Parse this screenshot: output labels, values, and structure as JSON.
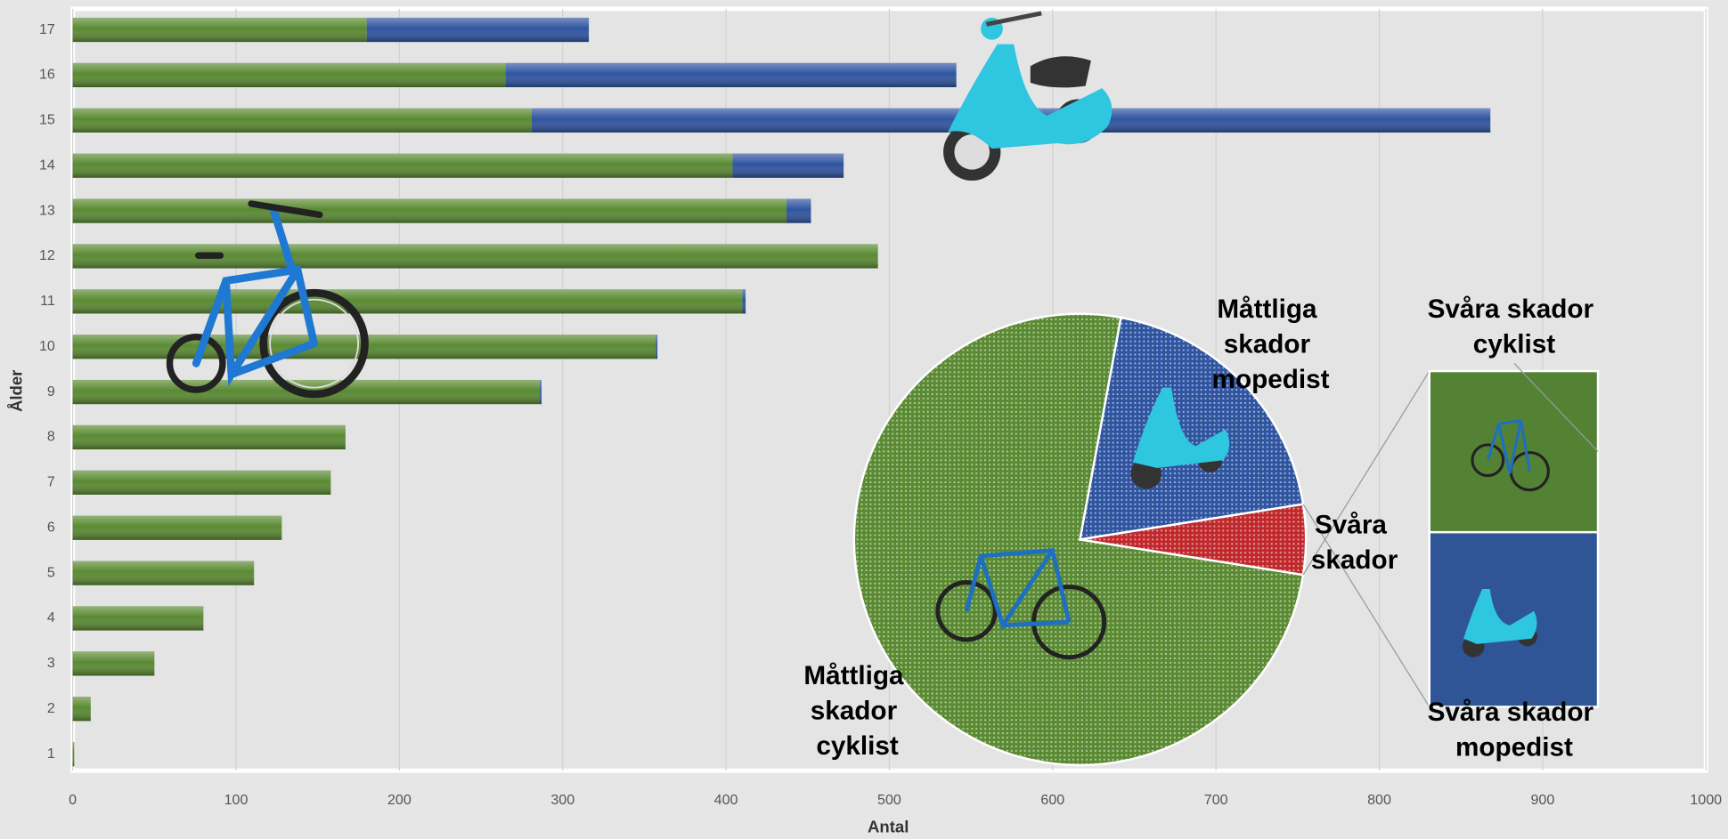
{
  "chart_data": [
    {
      "type": "bar",
      "orientation": "horizontal",
      "stacked": true,
      "categories": [
        "1",
        "2",
        "3",
        "4",
        "5",
        "6",
        "7",
        "8",
        "9",
        "10",
        "11",
        "12",
        "13",
        "14",
        "15",
        "16",
        "17"
      ],
      "series": [
        {
          "color": "#5a8a32",
          "values": [
            1,
            11,
            50,
            80,
            111,
            128,
            158,
            167,
            286,
            357,
            410,
            493,
            437,
            404,
            281,
            265,
            180
          ]
        },
        {
          "color": "#2f54a0",
          "values": [
            0,
            0,
            0,
            0,
            0,
            0,
            0,
            0,
            1,
            1,
            2,
            0,
            15,
            68,
            587,
            276,
            136
          ]
        }
      ],
      "xlabel": "Antal",
      "ylabel": "Ålder",
      "xlim": [
        0,
        1000
      ],
      "xticks": [
        0,
        100,
        200,
        300,
        400,
        500,
        600,
        700,
        800,
        900,
        1000
      ],
      "grid": true
    },
    {
      "type": "pie_of_pie",
      "labels": [
        "Måttliga skador cyklist",
        "Måttliga skador mopedist"
      ],
      "values": [
        75.4,
        19.6
      ],
      "colors": [
        "#5a8a32",
        "#2f54a0"
      ],
      "other_label": "Svåra skador",
      "other_color": "#c0282c",
      "secondary": {
        "labels": [
          "Svåra skador cyklist",
          "Svåra skador mopedist"
        ],
        "values": [
          2.4,
          2.6
        ],
        "colors": [
          "#548235",
          "#2f5597"
        ]
      }
    }
  ]
}
